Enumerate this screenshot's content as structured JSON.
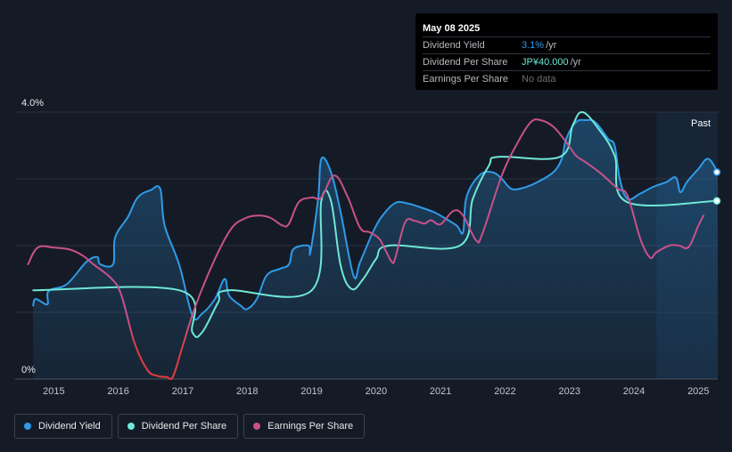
{
  "tooltip": {
    "date": "May 08 2025",
    "rows": [
      {
        "label": "Dividend Yield",
        "value": "3.1%",
        "unit": "/yr"
      },
      {
        "label": "Dividend Per Share",
        "value": "JP¥40.000",
        "unit": "/yr"
      },
      {
        "label": "Earnings Per Share",
        "value": "No data",
        "unit": ""
      }
    ]
  },
  "past_label": "Past",
  "legend": [
    {
      "label": "Dividend Yield",
      "color": "#2f9be8"
    },
    {
      "label": "Dividend Per Share",
      "color": "#6ee8d6"
    },
    {
      "label": "Earnings Per Share",
      "color": "#c8518a"
    }
  ],
  "chart_data": {
    "type": "line",
    "xlim": [
      2014.4,
      2025.3
    ],
    "ylim": [
      0,
      4.0
    ],
    "y_tick_labels": [
      {
        "value": 4.0,
        "label": "4.0%"
      },
      {
        "value": 0,
        "label": "0%"
      }
    ],
    "x_ticks": [
      2015,
      2016,
      2017,
      2018,
      2019,
      2020,
      2021,
      2022,
      2023,
      2024,
      2025
    ],
    "forecast_start": 2024.35,
    "series": [
      {
        "name": "Dividend Yield",
        "color": "#2f9be8",
        "fill": true,
        "points": [
          [
            2014.68,
            1.1
          ],
          [
            2014.72,
            1.2
          ],
          [
            2014.9,
            1.12
          ],
          [
            2014.92,
            1.32
          ],
          [
            2015.2,
            1.42
          ],
          [
            2015.5,
            1.75
          ],
          [
            2015.67,
            1.83
          ],
          [
            2015.72,
            1.72
          ],
          [
            2015.92,
            1.72
          ],
          [
            2015.95,
            2.12
          ],
          [
            2016.15,
            2.43
          ],
          [
            2016.3,
            2.72
          ],
          [
            2016.5,
            2.83
          ],
          [
            2016.65,
            2.85
          ],
          [
            2016.72,
            2.3
          ],
          [
            2016.95,
            1.7
          ],
          [
            2017.15,
            0.95
          ],
          [
            2017.3,
            0.98
          ],
          [
            2017.5,
            1.2
          ],
          [
            2017.65,
            1.5
          ],
          [
            2017.72,
            1.25
          ],
          [
            2017.9,
            1.1
          ],
          [
            2018.0,
            1.05
          ],
          [
            2018.15,
            1.2
          ],
          [
            2018.3,
            1.55
          ],
          [
            2018.5,
            1.65
          ],
          [
            2018.65,
            1.72
          ],
          [
            2018.72,
            1.95
          ],
          [
            2018.95,
            2.0
          ],
          [
            2018.98,
            1.9
          ],
          [
            2019.1,
            2.7
          ],
          [
            2019.15,
            3.3
          ],
          [
            2019.3,
            3.1
          ],
          [
            2019.45,
            2.5
          ],
          [
            2019.65,
            1.55
          ],
          [
            2019.75,
            1.75
          ],
          [
            2019.95,
            2.2
          ],
          [
            2020.1,
            2.45
          ],
          [
            2020.3,
            2.64
          ],
          [
            2020.5,
            2.63
          ],
          [
            2020.7,
            2.57
          ],
          [
            2020.9,
            2.5
          ],
          [
            2021.05,
            2.42
          ],
          [
            2021.25,
            2.3
          ],
          [
            2021.35,
            2.2
          ],
          [
            2021.4,
            2.72
          ],
          [
            2021.6,
            3.05
          ],
          [
            2021.8,
            3.1
          ],
          [
            2021.95,
            3.0
          ],
          [
            2022.1,
            2.85
          ],
          [
            2022.3,
            2.87
          ],
          [
            2022.5,
            2.95
          ],
          [
            2022.75,
            3.1
          ],
          [
            2022.88,
            3.3
          ],
          [
            2022.95,
            3.6
          ],
          [
            2023.1,
            3.85
          ],
          [
            2023.25,
            3.88
          ],
          [
            2023.4,
            3.85
          ],
          [
            2023.6,
            3.6
          ],
          [
            2023.7,
            3.5
          ],
          [
            2023.78,
            3.0
          ],
          [
            2023.9,
            2.7
          ],
          [
            2024.1,
            2.78
          ],
          [
            2024.3,
            2.88
          ],
          [
            2024.5,
            2.95
          ],
          [
            2024.65,
            3.02
          ],
          [
            2024.72,
            2.8
          ],
          [
            2024.82,
            2.95
          ],
          [
            2025.0,
            3.15
          ],
          [
            2025.15,
            3.3
          ],
          [
            2025.3,
            3.1
          ]
        ]
      },
      {
        "name": "Dividend Per Share",
        "color": "#6ee8d6",
        "fill": false,
        "points": [
          [
            2014.68,
            1.33
          ],
          [
            2016.95,
            1.33
          ],
          [
            2017.15,
            0.7
          ],
          [
            2017.3,
            0.7
          ],
          [
            2017.55,
            1.15
          ],
          [
            2017.7,
            1.33
          ],
          [
            2019.0,
            1.33
          ],
          [
            2019.15,
            2.67
          ],
          [
            2019.3,
            2.67
          ],
          [
            2019.45,
            1.7
          ],
          [
            2019.62,
            1.35
          ],
          [
            2019.8,
            1.5
          ],
          [
            2020.0,
            1.8
          ],
          [
            2020.2,
            2.0
          ],
          [
            2021.3,
            2.0
          ],
          [
            2021.5,
            2.7
          ],
          [
            2021.75,
            3.2
          ],
          [
            2021.9,
            3.33
          ],
          [
            2022.85,
            3.33
          ],
          [
            2023.05,
            3.8
          ],
          [
            2023.2,
            4.0
          ],
          [
            2023.45,
            3.75
          ],
          [
            2023.7,
            3.35
          ],
          [
            2023.9,
            2.65
          ],
          [
            2025.3,
            2.67
          ]
        ]
      },
      {
        "name": "Earnings Per Share",
        "color": "#c8518a",
        "fill": false,
        "points": [
          [
            2014.6,
            1.72
          ],
          [
            2014.75,
            1.97
          ],
          [
            2015.0,
            1.97
          ],
          [
            2015.25,
            1.94
          ],
          [
            2015.45,
            1.85
          ],
          [
            2015.6,
            1.73
          ],
          [
            2015.9,
            1.5
          ],
          [
            2016.05,
            1.25
          ],
          [
            2016.25,
            0.55
          ],
          [
            2016.45,
            0.14
          ],
          [
            2016.6,
            0.05
          ],
          [
            2016.75,
            0.03
          ],
          [
            2016.85,
            0.04
          ],
          [
            2017.0,
            0.5
          ],
          [
            2017.2,
            1.1
          ],
          [
            2017.5,
            1.8
          ],
          [
            2017.75,
            2.25
          ],
          [
            2017.95,
            2.4
          ],
          [
            2018.15,
            2.45
          ],
          [
            2018.35,
            2.42
          ],
          [
            2018.55,
            2.3
          ],
          [
            2018.65,
            2.33
          ],
          [
            2018.8,
            2.65
          ],
          [
            2019.0,
            2.72
          ],
          [
            2019.15,
            2.72
          ],
          [
            2019.35,
            3.05
          ],
          [
            2019.55,
            2.75
          ],
          [
            2019.75,
            2.27
          ],
          [
            2019.9,
            2.2
          ],
          [
            2020.05,
            2.1
          ],
          [
            2020.15,
            1.92
          ],
          [
            2020.25,
            1.75
          ],
          [
            2020.3,
            1.82
          ],
          [
            2020.45,
            2.35
          ],
          [
            2020.6,
            2.37
          ],
          [
            2020.75,
            2.33
          ],
          [
            2020.85,
            2.38
          ],
          [
            2021.0,
            2.32
          ],
          [
            2021.2,
            2.52
          ],
          [
            2021.35,
            2.45
          ],
          [
            2021.55,
            2.08
          ],
          [
            2021.65,
            2.18
          ],
          [
            2021.95,
            3.05
          ],
          [
            2022.2,
            3.55
          ],
          [
            2022.4,
            3.85
          ],
          [
            2022.55,
            3.88
          ],
          [
            2022.75,
            3.78
          ],
          [
            2022.95,
            3.55
          ],
          [
            2023.1,
            3.35
          ],
          [
            2023.25,
            3.25
          ],
          [
            2023.5,
            3.07
          ],
          [
            2023.75,
            2.85
          ],
          [
            2023.9,
            2.75
          ],
          [
            2024.1,
            2.1
          ],
          [
            2024.25,
            1.82
          ],
          [
            2024.35,
            1.9
          ],
          [
            2024.55,
            2.0
          ],
          [
            2024.7,
            2.0
          ],
          [
            2024.85,
            1.98
          ],
          [
            2025.0,
            2.3
          ],
          [
            2025.08,
            2.45
          ]
        ]
      }
    ]
  }
}
